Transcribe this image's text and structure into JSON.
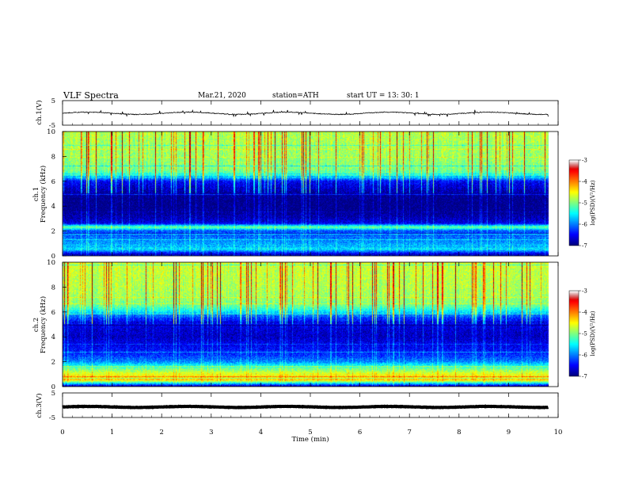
{
  "header": {
    "title": "VLF  Spectra",
    "date": "Mar.21, 2020",
    "station": "station=ATH",
    "start": "start  UT  =    13: 30: 1"
  },
  "panels": {
    "ch1_wave": {
      "ylabel": "ch.1(V)",
      "ticks": [
        "5",
        "-5"
      ]
    },
    "ch1_spec": {
      "ylabel_top": "ch.1",
      "ylabel_bottom": "Frequency (kHz)",
      "ticks": [
        "10",
        "8",
        "6",
        "4",
        "2",
        "0"
      ]
    },
    "ch2_spec": {
      "ylabel_top": "ch.2",
      "ylabel_bottom": "Frequency (kHz)",
      "ticks": [
        "10",
        "8",
        "6",
        "4",
        "2",
        "0"
      ]
    },
    "ch3_wave": {
      "ylabel": "ch.3(V)",
      "ticks": [
        "5",
        "-5"
      ]
    }
  },
  "colorbars": [
    {
      "ticks": [
        "-3",
        "-4",
        "-5",
        "-6",
        "-7"
      ],
      "label": "log(PSD)(V²/Hz)"
    },
    {
      "ticks": [
        "-3",
        "-4",
        "-5",
        "-6",
        "-7"
      ],
      "label": "log(PSD)(V²/Hz)"
    }
  ],
  "colors": {
    "low": "#000080",
    "mid_low": "#1e64ff",
    "mid": "#00ffff",
    "mid_high": "#32ff32",
    "high_y": "#ffff00",
    "high": "#ff0000"
  },
  "chart_data": [
    {
      "type": "line",
      "name": "ch1-waveform",
      "ylabel": "ch.1(V)",
      "ylim": [
        -5,
        5
      ],
      "x_range": [
        0,
        9.8
      ],
      "y_approx_range": [
        -0.8,
        0.5
      ]
    },
    {
      "type": "heatmap",
      "name": "ch1-spectrogram",
      "ylabel": "Frequency (kHz)",
      "ylim": [
        0,
        10
      ],
      "xlim": [
        0,
        10
      ],
      "data_x_end": 9.8,
      "zlim": [
        -7,
        -3
      ],
      "zlabel": "log(PSD)(V²/Hz)",
      "freq_profile_log_psd": [
        [
          0,
          -7
        ],
        [
          0.5,
          -5.6
        ],
        [
          1.0,
          -5.9
        ],
        [
          1.5,
          -6.1
        ],
        [
          2.0,
          -6.2
        ],
        [
          2.3,
          -5.0
        ],
        [
          2.6,
          -6.6
        ],
        [
          3.0,
          -6.8
        ],
        [
          3.5,
          -6.95
        ],
        [
          4.0,
          -7.0
        ],
        [
          4.5,
          -7.0
        ],
        [
          5.0,
          -6.9
        ],
        [
          5.5,
          -6.7
        ],
        [
          6.0,
          -6.5
        ],
        [
          6.5,
          -5.3
        ],
        [
          7.0,
          -5.0
        ],
        [
          8.0,
          -4.9
        ],
        [
          9.0,
          -4.85
        ],
        [
          10.0,
          -4.8
        ]
      ]
    },
    {
      "type": "heatmap",
      "name": "ch2-spectrogram",
      "ylabel": "Frequency (kHz)",
      "ylim": [
        0,
        10
      ],
      "xlim": [
        0,
        10
      ],
      "data_x_end": 9.8,
      "zlim": [
        -7,
        -3
      ],
      "zlabel": "log(PSD)(V²/Hz)",
      "freq_profile_log_psd": [
        [
          0,
          -6.8
        ],
        [
          0.5,
          -4.3
        ],
        [
          1.0,
          -4.6
        ],
        [
          1.5,
          -5.2
        ],
        [
          2.0,
          -6.0
        ],
        [
          2.5,
          -6.3
        ],
        [
          3.0,
          -6.5
        ],
        [
          3.5,
          -6.6
        ],
        [
          4.0,
          -6.75
        ],
        [
          4.5,
          -6.7
        ],
        [
          5.0,
          -6.6
        ],
        [
          5.5,
          -6.3
        ],
        [
          6.0,
          -5.6
        ],
        [
          6.5,
          -5.1
        ],
        [
          7.0,
          -4.9
        ],
        [
          8.0,
          -4.8
        ],
        [
          9.0,
          -4.75
        ],
        [
          10.0,
          -4.7
        ]
      ]
    },
    {
      "type": "line",
      "name": "ch3-waveform",
      "ylabel": "ch.3(V)",
      "ylim": [
        -5,
        5
      ],
      "x_range": [
        0,
        9.8
      ],
      "y_approx_range": [
        -1.0,
        -0.4
      ]
    }
  ],
  "xaxis": {
    "label": "Time  (min)",
    "ticks": [
      "0",
      "1",
      "2",
      "3",
      "4",
      "5",
      "6",
      "7",
      "8",
      "9",
      "10"
    ],
    "xlim": [
      0,
      10
    ]
  }
}
